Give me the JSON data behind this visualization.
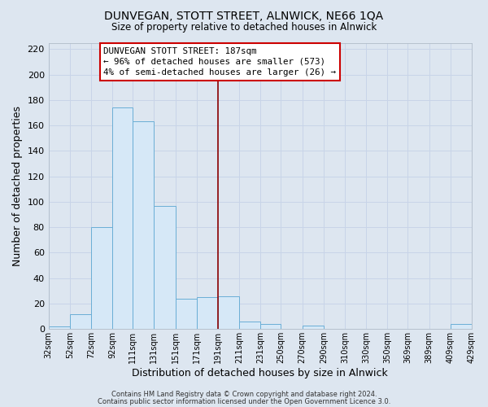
{
  "title": "DUNVEGAN, STOTT STREET, ALNWICK, NE66 1QA",
  "subtitle": "Size of property relative to detached houses in Alnwick",
  "xlabel": "Distribution of detached houses by size in Alnwick",
  "ylabel": "Number of detached properties",
  "bin_edges": [
    32,
    52,
    72,
    92,
    111,
    131,
    151,
    171,
    191,
    211,
    231,
    250,
    270,
    290,
    310,
    330,
    350,
    369,
    389,
    409,
    429
  ],
  "bar_heights": [
    2,
    12,
    80,
    174,
    163,
    97,
    24,
    25,
    26,
    6,
    4,
    0,
    3,
    0,
    0,
    0,
    0,
    0,
    0,
    4
  ],
  "bar_color": "#d6e8f7",
  "bar_edge_color": "#6aaed6",
  "vline_x": 191,
  "vline_color": "#8b0000",
  "ylim": [
    0,
    225
  ],
  "yticks": [
    0,
    20,
    40,
    60,
    80,
    100,
    120,
    140,
    160,
    180,
    200,
    220
  ],
  "xtick_labels": [
    "32sqm",
    "52sqm",
    "72sqm",
    "92sqm",
    "111sqm",
    "131sqm",
    "151sqm",
    "171sqm",
    "191sqm",
    "211sqm",
    "231sqm",
    "250sqm",
    "270sqm",
    "290sqm",
    "310sqm",
    "330sqm",
    "350sqm",
    "369sqm",
    "389sqm",
    "409sqm",
    "429sqm"
  ],
  "annotation_title": "DUNVEGAN STOTT STREET: 187sqm",
  "annotation_line1": "← 96% of detached houses are smaller (573)",
  "annotation_line2": "4% of semi-detached houses are larger (26) →",
  "grid_color": "#c8d4e8",
  "background_color": "#dde6f0",
  "footnote1": "Contains HM Land Registry data © Crown copyright and database right 2024.",
  "footnote2": "Contains public sector information licensed under the Open Government Licence 3.0."
}
